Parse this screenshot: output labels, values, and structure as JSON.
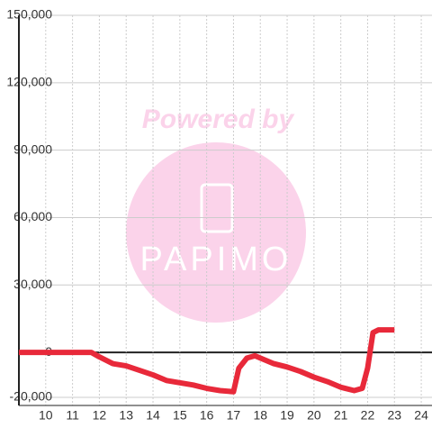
{
  "chart_data": {
    "type": "line",
    "watermark": {
      "caption": "Powered by",
      "brand": "PAPIMO"
    },
    "x": [
      9,
      11.7,
      12,
      12.5,
      13,
      13.5,
      14,
      14.5,
      15,
      15.5,
      16,
      16.5,
      17,
      17.2,
      17.5,
      17.8,
      18,
      18.5,
      19,
      19.5,
      20,
      20.5,
      21,
      21.5,
      21.8,
      22,
      22.2,
      22.4,
      23
    ],
    "series": [
      {
        "color": "#e8293a",
        "values": [
          0,
          0,
          -2000,
          -5000,
          -6000,
          -8000,
          -10000,
          -12500,
          -13500,
          -14500,
          -16000,
          -17000,
          -17500,
          -7000,
          -2500,
          -1500,
          -2500,
          -5000,
          -6500,
          -8500,
          -11000,
          -13000,
          -15500,
          -17000,
          -16000,
          -7000,
          8800,
          10000,
          10000
        ]
      }
    ],
    "xlim": [
      9,
      24.4
    ],
    "xticks": [
      10,
      11,
      12,
      13,
      14,
      15,
      16,
      17,
      18,
      19,
      20,
      21,
      22,
      23,
      24
    ],
    "ylim": [
      -20000,
      150000
    ],
    "yticks": [
      {
        "value": -20000,
        "label": "-20,000"
      },
      0,
      {
        "value": 30000,
        "label": "30,000"
      },
      {
        "value": 60000,
        "label": "60,000"
      },
      {
        "value": 90000,
        "label": "90,000"
      },
      {
        "value": 120000,
        "label": "120,000"
      },
      {
        "value": 150000,
        "label": "150,000"
      }
    ],
    "grid": true
  }
}
